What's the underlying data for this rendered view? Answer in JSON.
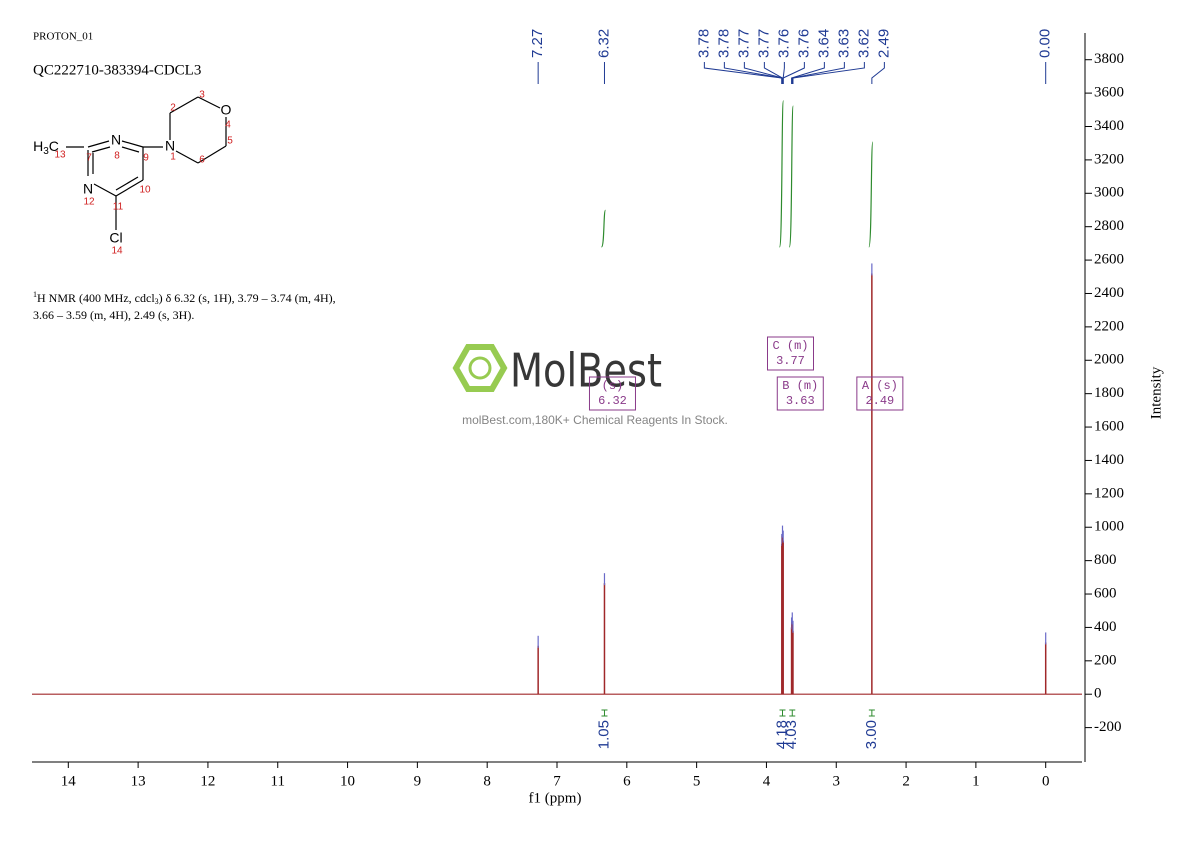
{
  "header": {
    "experiment": "PROTON_01",
    "sample": "QC222710-383394-CDCL3"
  },
  "molecule": {
    "methyl": [
      "H",
      "3",
      "C"
    ],
    "atoms": [
      "N",
      "N",
      "O",
      "N",
      "Cl"
    ],
    "numbers": [
      "13",
      "7",
      "8",
      "9",
      "1",
      "2",
      "3",
      "4",
      "5",
      "6",
      "10",
      "11",
      "12",
      "14"
    ]
  },
  "nmr_description": [
    "1",
    "H NMR (400 MHz, cdcl",
    "3",
    ") δ 6.32 (s, 1H), 3.79 – 3.74 (m, 4H),",
    "3.66 – 3.59 (m, 4H), 2.49 (s, 3H)."
  ],
  "watermark": {
    "brand": "MolBest",
    "tagline": "molBest.com,180K+ Chemical Reagents In Stock."
  },
  "chart_data": {
    "type": "nmr",
    "xlabel": "f1 (ppm)",
    "ylabel": "Intensity",
    "xlim": [
      14.52,
      -0.52
    ],
    "xticks": [
      14,
      13,
      12,
      11,
      10,
      9,
      8,
      7,
      6,
      5,
      4,
      3,
      2,
      1,
      0
    ],
    "ylim": [
      -400,
      3960
    ],
    "yticks": [
      -200,
      0,
      200,
      400,
      600,
      800,
      1000,
      1200,
      1400,
      1600,
      1800,
      2000,
      2200,
      2400,
      2600,
      2800,
      3000,
      3200,
      3400,
      3600,
      3800
    ],
    "color": "#a0282a",
    "peaks": {
      "x": [
        7.27,
        6.32,
        3.78,
        3.77,
        3.76,
        3.64,
        3.63,
        3.62,
        2.49,
        0.0
      ],
      "values": [
        290,
        665,
        900,
        950,
        920,
        400,
        430,
        380,
        2520,
        310
      ]
    },
    "peak_labels": [
      7.27,
      6.32,
      3.78,
      3.78,
      3.77,
      3.77,
      3.76,
      3.76,
      3.64,
      3.63,
      3.62,
      2.49,
      {
        "value": 0,
        "label": "0.00"
      }
    ],
    "peak_label_color": "#1f3a93",
    "integrals": {
      "x": [
        6.32,
        3.77,
        3.63,
        2.49
      ],
      "values": [
        1.05,
        4.18,
        4.03,
        3
      ],
      "value_labels": [
        "1.05",
        "4.18",
        "4.03",
        "3.00"
      ],
      "color": "#2e8b2e"
    },
    "multiplets": {
      "names": [
        "(s)",
        "C (m)",
        "B (m)",
        "A (s)"
      ],
      "values": [
        6.32,
        3.77,
        3.63,
        2.49
      ],
      "color": "#8a3a8a"
    }
  }
}
